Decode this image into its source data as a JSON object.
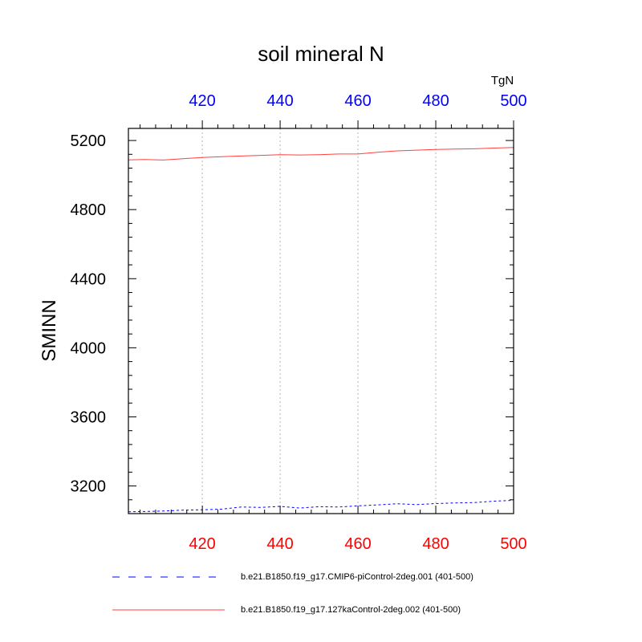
{
  "chart_data": {
    "type": "line",
    "title": "soil mineral N",
    "units": "TgN",
    "xlabel": "",
    "ylabel": "SMINN",
    "xlim": [
      401,
      500
    ],
    "ylim": [
      3040,
      5270
    ],
    "x_ticks": [
      420,
      440,
      460,
      480,
      500
    ],
    "y_ticks": [
      3200,
      3600,
      4000,
      4400,
      4800,
      5200
    ],
    "grid": "vertical dotted at x ticks",
    "colors": {
      "bottom_axis_labels": "#ff0000",
      "top_axis_labels": "#0000ff",
      "grid": "#b4b4b4"
    },
    "series": [
      {
        "name": "b.e21.B1850.f19_g17.CMIP6-piControl-2deg.001 (401-500)",
        "color": "#0000ff",
        "dash": "dashed",
        "x": [
          401,
          405,
          410,
          415,
          420,
          425,
          430,
          435,
          440,
          445,
          450,
          455,
          460,
          465,
          470,
          475,
          480,
          485,
          490,
          495,
          500
        ],
        "y": [
          3050,
          3052,
          3055,
          3060,
          3062,
          3066,
          3078,
          3076,
          3082,
          3072,
          3080,
          3078,
          3085,
          3090,
          3097,
          3092,
          3098,
          3102,
          3104,
          3112,
          3117
        ]
      },
      {
        "name": "b.e21.B1850.f19_g17.127kaControl-2deg.002 (401-500)",
        "color": "#ff4040",
        "dash": "solid",
        "x": [
          401,
          405,
          410,
          415,
          420,
          425,
          430,
          435,
          440,
          445,
          450,
          455,
          460,
          465,
          470,
          475,
          480,
          485,
          490,
          495,
          500
        ],
        "y": [
          5088,
          5090,
          5087,
          5095,
          5102,
          5106,
          5110,
          5114,
          5118,
          5116,
          5118,
          5122,
          5122,
          5132,
          5140,
          5144,
          5148,
          5150,
          5152,
          5156,
          5160
        ]
      }
    ]
  }
}
